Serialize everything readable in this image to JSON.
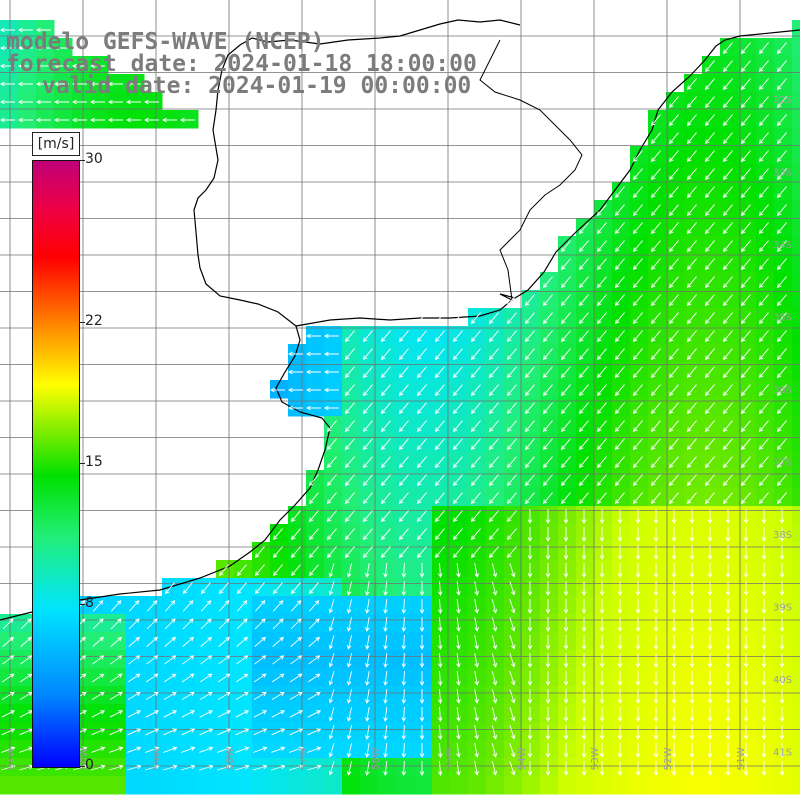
{
  "title": {
    "model": "modelo GEFS-WAVE (NCEP)",
    "forecast": "forecast date: 2024-01-18 18:00:00",
    "valid": "valid date: 2024-01-19 00:00:00"
  },
  "colorbar": {
    "units": "[m/s]",
    "min": 0,
    "max": 30,
    "ticks": [
      {
        "value": 30,
        "label": "30"
      },
      {
        "value": 22,
        "label": "22"
      },
      {
        "value": 15,
        "label": "15"
      },
      {
        "value": 8,
        "label": "8"
      },
      {
        "value": 0,
        "label": "0"
      }
    ],
    "colors": [
      "#0000ff",
      "#0088ff",
      "#00e4ff",
      "#22ee77",
      "#00e000",
      "#88ee00",
      "#ffff00",
      "#ffaa00",
      "#ff5500",
      "#ff0000",
      "#ee0044",
      "#c00078"
    ]
  },
  "map": {
    "latitude_labels": [
      "32S",
      "33S",
      "34S",
      "35S",
      "36S",
      "37S",
      "38S",
      "39S",
      "40S",
      "41S"
    ],
    "longitude_labels": [
      "61W",
      "60W",
      "59W",
      "58W",
      "57W",
      "56W",
      "55W",
      "54W",
      "53W",
      "52W",
      "51W"
    ],
    "land_color": "#ffffff",
    "grid_color": "#707070",
    "coast_color": "#000000",
    "arrow_color": "#ffffff"
  }
}
